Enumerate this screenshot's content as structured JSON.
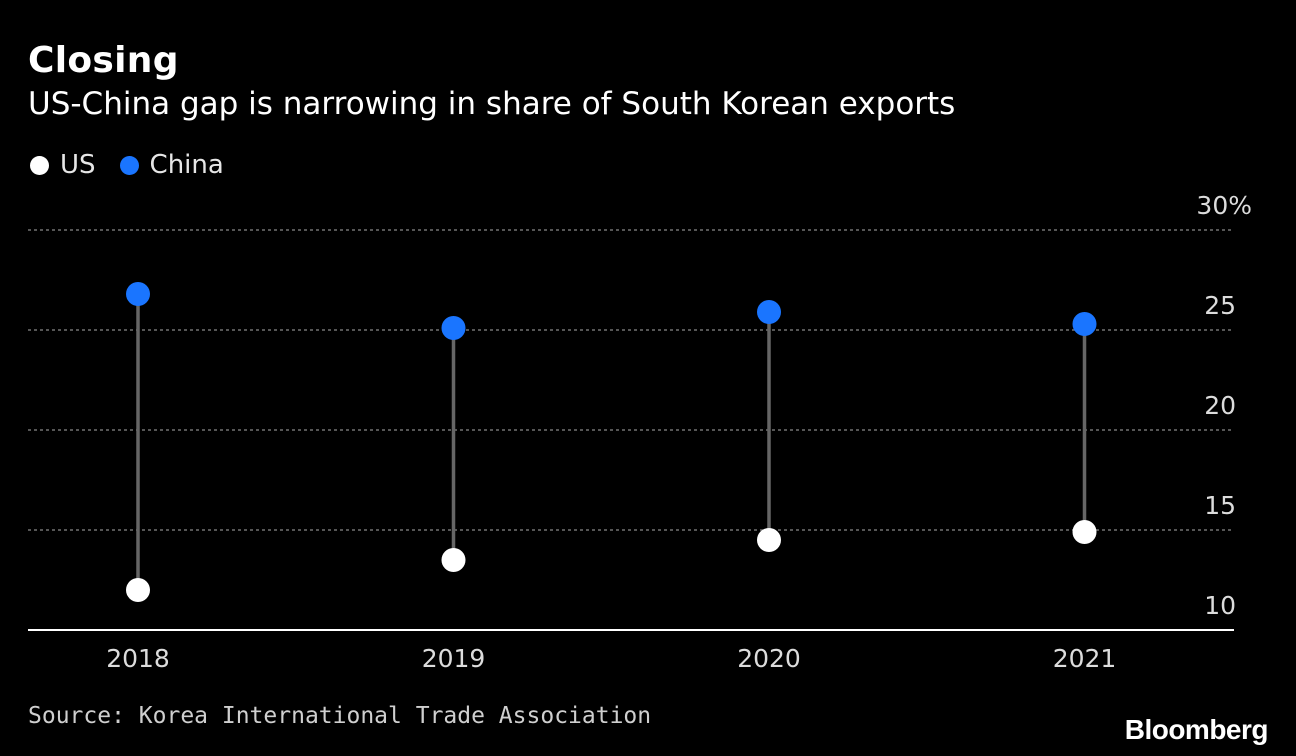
{
  "header": {
    "title": "Closing",
    "subtitle": "US-China gap is narrowing in share of South Korean exports"
  },
  "legend": {
    "items": [
      {
        "label": "US",
        "color": "#ffffff",
        "icon": "white-dot-icon"
      },
      {
        "label": "China",
        "color": "#1a75ff",
        "icon": "blue-dot-icon"
      }
    ]
  },
  "chart_data": {
    "type": "dot-range",
    "categories": [
      "2018",
      "2019",
      "2020",
      "2021"
    ],
    "series": [
      {
        "name": "US",
        "color": "#ffffff",
        "values": [
          12.0,
          13.5,
          14.5,
          14.9
        ]
      },
      {
        "name": "China",
        "color": "#1a75ff",
        "values": [
          26.8,
          25.1,
          25.9,
          25.3
        ]
      }
    ],
    "ylim": [
      10,
      30
    ],
    "yticks": [
      10,
      15,
      20,
      25,
      30
    ],
    "ytick_labels": [
      "10",
      "15",
      "20",
      "25",
      "30%"
    ],
    "grid": true,
    "connector_color": "#666666"
  },
  "footer": {
    "source": "Source: Korea International Trade Association",
    "logo": "Bloomberg"
  }
}
